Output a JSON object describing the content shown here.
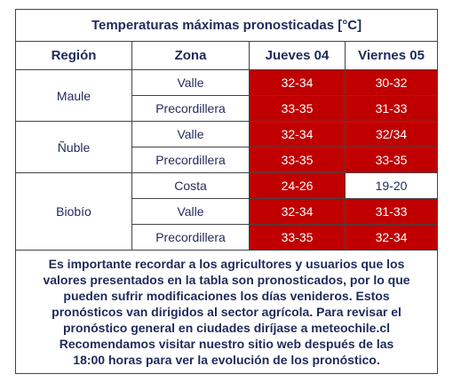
{
  "table": {
    "title": "Temperaturas máximas pronosticadas [°C]",
    "headers": [
      "Región",
      "Zona",
      "Jueves 04",
      "Viernes 05"
    ],
    "groups": [
      {
        "region": "Maule",
        "rows": [
          {
            "zona": "Valle",
            "cells": [
              {
                "text": "32-34",
                "color": "#c00000"
              },
              {
                "text": "30-32",
                "color": "#c00000"
              }
            ]
          },
          {
            "zona": "Precordillera",
            "cells": [
              {
                "text": "33-35",
                "color": "#c00000"
              },
              {
                "text": "31-33",
                "color": "#c00000"
              }
            ]
          }
        ]
      },
      {
        "region": "Ñuble",
        "rows": [
          {
            "zona": "Valle",
            "cells": [
              {
                "text": "32-34",
                "color": "#c00000"
              },
              {
                "text": "32/34",
                "color": "#c00000"
              }
            ]
          },
          {
            "zona": "Precordillera",
            "cells": [
              {
                "text": "33-35",
                "color": "#c00000"
              },
              {
                "text": "33-35",
                "color": "#c00000"
              }
            ]
          }
        ]
      },
      {
        "region": "Biobío",
        "rows": [
          {
            "zona": "Costa",
            "cells": [
              {
                "text": "24-26",
                "color": "#c00000"
              },
              {
                "text": "19-20",
                "color": "#ffffff"
              }
            ]
          },
          {
            "zona": "Valle",
            "cells": [
              {
                "text": "32-34",
                "color": "#c00000"
              },
              {
                "text": "31-33",
                "color": "#c00000"
              }
            ]
          },
          {
            "zona": "Precordillera",
            "cells": [
              {
                "text": "33-35",
                "color": "#c00000"
              },
              {
                "text": "32-34",
                "color": "#c00000"
              }
            ]
          }
        ]
      }
    ],
    "note": [
      "Es importante recordar a los agricultores y usuarios que los",
      "valores presentados en la tabla son pronosticados, por lo que",
      "pueden sufrir modificaciones los días venideros. Estos",
      "pronósticos van dirigidos al sector agrícola. Para revisar el",
      "pronóstico general en ciudades diríjase a meteochile.cl",
      "Recomendamos visitar nuestro sitio web después de las",
      "18:00 horas para ver la evolución de los pronóstico."
    ]
  }
}
